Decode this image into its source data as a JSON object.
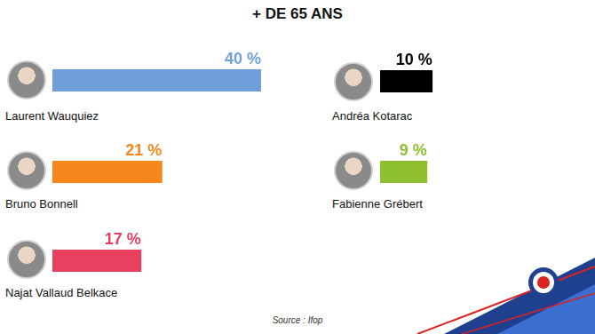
{
  "chart_data": {
    "type": "bar",
    "title": "+ DE 65 ANS",
    "categories": [
      "Laurent Wauquiez",
      "Bruno Bonnell",
      "Najat Vallaud Belkace",
      "Andréa Kotarac",
      "Fabienne Grébert"
    ],
    "values": [
      40,
      21,
      17,
      10,
      9
    ],
    "value_labels": [
      "40 %",
      "21 %",
      "17 %",
      "10 %",
      "9 %"
    ],
    "colors": [
      "#6f9fd8",
      "#f7861d",
      "#e8415f",
      "#000000",
      "#8dbf2f"
    ],
    "orientation": "horizontal",
    "data_labels": true,
    "tick_labels": false,
    "grid": false,
    "xlim": [
      0,
      40
    ],
    "source": "Source : Ifop"
  }
}
